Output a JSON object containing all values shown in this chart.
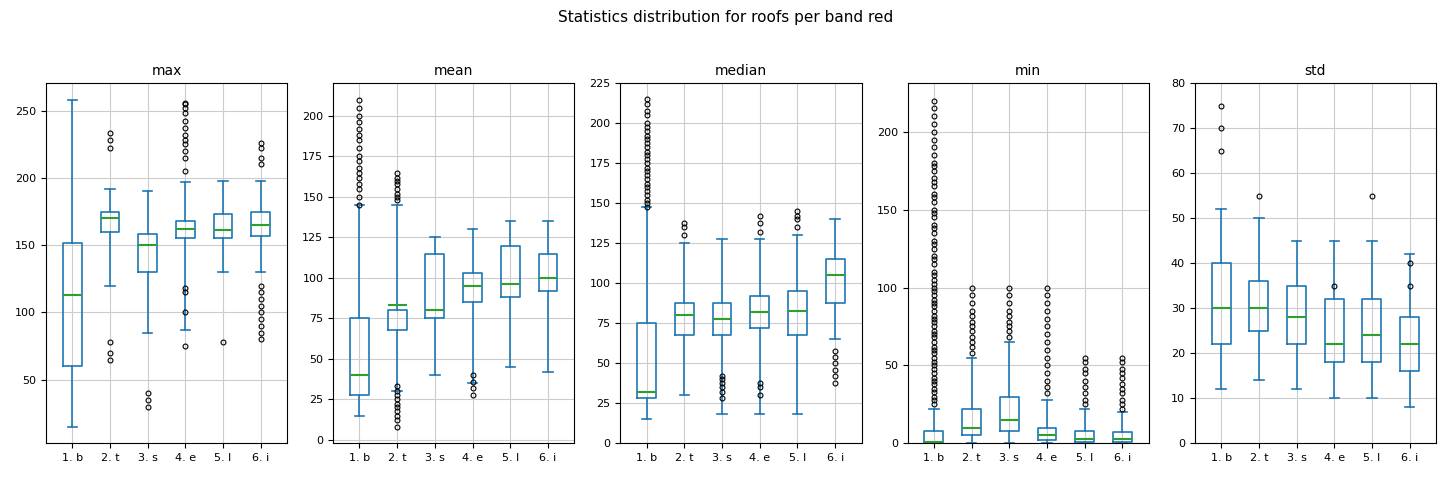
{
  "title": "Statistics distribution for roofs per band red",
  "subplots": [
    "max",
    "mean",
    "median",
    "min",
    "std"
  ],
  "x_labels": [
    "1. b",
    "2. t",
    "3. s",
    "4. e",
    "5. l",
    "6. i"
  ],
  "box_color": "#1f77b4",
  "median_color": "#2ca02c",
  "flier_color": "black",
  "max": {
    "q1": [
      60,
      160,
      130,
      155,
      155,
      157
    ],
    "median": [
      113,
      170,
      150,
      162,
      161,
      165
    ],
    "q3": [
      152,
      175,
      158,
      168,
      173,
      175
    ],
    "whislo": [
      15,
      120,
      85,
      87,
      130,
      130
    ],
    "whishi": [
      258,
      192,
      190,
      197,
      198,
      198
    ],
    "fliers_low": [
      [],
      [
        65,
        70,
        78
      ],
      [],
      [
        75
      ],
      [],
      []
    ],
    "fliers_high": [
      [],
      [
        222,
        228,
        233
      ],
      [
        30,
        35,
        40
      ],
      [
        100,
        115,
        118,
        205,
        215,
        220,
        225,
        228,
        232,
        237,
        242,
        248,
        252,
        255,
        256
      ],
      [
        78
      ],
      [
        80,
        85,
        90,
        95,
        100,
        105,
        110,
        115,
        120,
        210,
        215,
        222,
        226
      ]
    ]
  },
  "mean": {
    "q1": [
      28,
      68,
      75,
      85,
      88,
      92
    ],
    "median": [
      40,
      83,
      80,
      95,
      96,
      100
    ],
    "q3": [
      75,
      80,
      115,
      103,
      120,
      115
    ],
    "whislo": [
      15,
      30,
      40,
      35,
      45,
      42
    ],
    "whishi": [
      145,
      145,
      125,
      130,
      135,
      135
    ],
    "fliers_low": [
      [],
      [
        8,
        12,
        15,
        18,
        20,
        22,
        25,
        28,
        30,
        33
      ],
      [],
      [
        28,
        32,
        36,
        40
      ],
      [],
      []
    ],
    "fliers_high": [
      [
        145,
        150,
        155,
        158,
        162,
        165,
        168,
        172,
        175,
        180,
        185,
        188,
        192,
        196,
        200,
        205,
        210
      ],
      [
        148,
        150,
        152,
        155,
        158,
        160,
        162,
        165
      ],
      [],
      [],
      [],
      []
    ]
  },
  "median": {
    "q1": [
      28,
      68,
      68,
      72,
      68,
      88
    ],
    "median": [
      32,
      80,
      78,
      82,
      83,
      105
    ],
    "q3": [
      75,
      88,
      88,
      92,
      95,
      115
    ],
    "whislo": [
      15,
      30,
      18,
      18,
      18,
      65
    ],
    "whishi": [
      148,
      125,
      128,
      128,
      130,
      140
    ],
    "fliers_low": [
      [],
      [],
      [
        28,
        32,
        35,
        38,
        40,
        42
      ],
      [
        30,
        35,
        38
      ],
      [],
      []
    ],
    "fliers_high": [
      [
        148,
        150,
        152,
        155,
        158,
        160,
        162,
        165,
        168,
        170,
        172,
        175,
        178,
        180,
        182,
        185,
        188,
        190,
        192,
        195,
        198,
        200,
        205,
        208,
        212,
        215
      ],
      [
        130,
        135,
        138
      ],
      [],
      [
        132,
        138,
        142
      ],
      [
        135,
        140,
        142,
        145
      ],
      [
        38,
        42,
        46,
        50,
        54,
        58
      ]
    ]
  },
  "min": {
    "q1": [
      0,
      5,
      8,
      2,
      1,
      1
    ],
    "median": [
      1,
      10,
      15,
      5,
      3,
      3
    ],
    "q3": [
      8,
      22,
      30,
      10,
      8,
      7
    ],
    "whislo": [
      0,
      0,
      0,
      0,
      0,
      0
    ],
    "whishi": [
      22,
      55,
      65,
      28,
      22,
      20
    ],
    "fliers_low": [
      [],
      [],
      [],
      [],
      [],
      []
    ],
    "fliers_high": [
      [
        25,
        28,
        30,
        33,
        35,
        38,
        40,
        42,
        45,
        48,
        50,
        52,
        55,
        58,
        60,
        62,
        65,
        68,
        70,
        72,
        75,
        78,
        80,
        82,
        85,
        88,
        90,
        92,
        95,
        98,
        100,
        102,
        105,
        108,
        110,
        115,
        118,
        120,
        125,
        128,
        130,
        135,
        138,
        140,
        145,
        148,
        150,
        155,
        158,
        160,
        165,
        168,
        170,
        175,
        178,
        180,
        185,
        190,
        195,
        200,
        205,
        210,
        215,
        220
      ],
      [
        58,
        62,
        65,
        68,
        72,
        75,
        78,
        82,
        85,
        90,
        95,
        100
      ],
      [
        68,
        72,
        75,
        78,
        82,
        85,
        90,
        95,
        100
      ],
      [
        32,
        36,
        40,
        45,
        50,
        55,
        60,
        65,
        70,
        75,
        80,
        85,
        90,
        95,
        100
      ],
      [
        25,
        28,
        32,
        36,
        40,
        45,
        48,
        52,
        55
      ],
      [
        22,
        25,
        28,
        32,
        35,
        38,
        42,
        45,
        48,
        52,
        55
      ]
    ]
  },
  "std": {
    "q1": [
      22,
      25,
      22,
      18,
      18,
      16
    ],
    "median": [
      30,
      30,
      28,
      22,
      24,
      22
    ],
    "q3": [
      40,
      36,
      35,
      32,
      32,
      28
    ],
    "whislo": [
      12,
      14,
      12,
      10,
      10,
      8
    ],
    "whishi": [
      52,
      50,
      45,
      45,
      45,
      42
    ],
    "fliers_low": [
      [],
      [],
      [],
      [],
      [],
      []
    ],
    "fliers_high": [
      [
        65,
        70,
        75
      ],
      [
        55
      ],
      [],
      [
        35
      ],
      [
        55
      ],
      [
        35,
        40
      ]
    ]
  },
  "ylims": {
    "max": [
      null,
      null
    ],
    "mean": [
      null,
      null
    ],
    "median": [
      0,
      null
    ],
    "min": [
      0,
      null
    ],
    "std": [
      0,
      80
    ]
  }
}
